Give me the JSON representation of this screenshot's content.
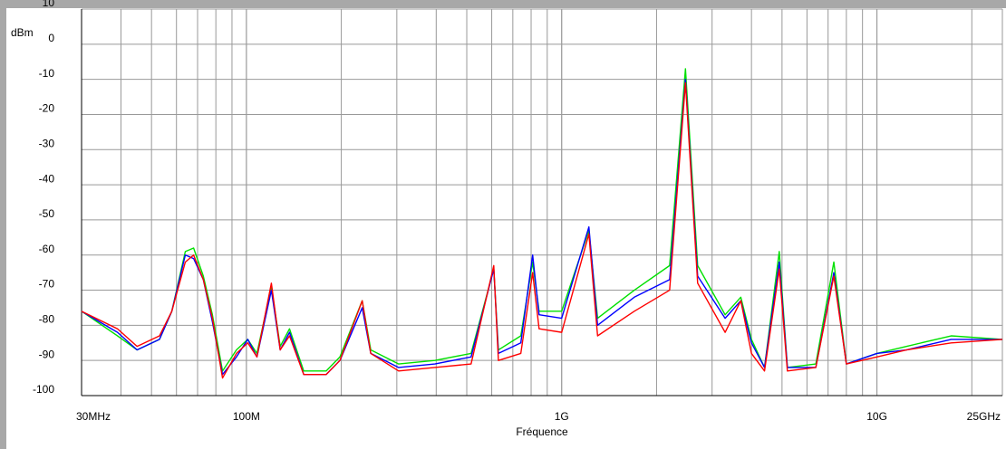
{
  "chart_data": {
    "type": "line",
    "y_label": "dBm",
    "x_label": "Fréquence",
    "log_x": true,
    "grid": true,
    "minor_grid": true,
    "xlim": [
      30000000,
      25000000000
    ],
    "xticks": [
      {
        "value": 30000000,
        "label": "30MHz"
      },
      {
        "value": 100000000,
        "label": "100M"
      },
      {
        "value": 1000000000,
        "label": "1G"
      },
      {
        "value": 10000000000,
        "label": "10G"
      },
      {
        "value": 25000000000,
        "label": "25GHz"
      }
    ],
    "ylim": [
      -100,
      10
    ],
    "yticks": [
      10,
      0,
      -10,
      -20,
      -30,
      -40,
      -50,
      -60,
      -70,
      -80,
      -90,
      -100
    ],
    "x": [
      30000000.0,
      39000000.0,
      45000000.0,
      53000000.0,
      58000000.0,
      64000000.0,
      68000000.0,
      73000000.0,
      78000000.0,
      84000000.0,
      93000000.0,
      101000000.0,
      108000000.0,
      120000000.0,
      128000000.0,
      137000000.0,
      152000000.0,
      179000000.0,
      198000000.0,
      233000000.0,
      248000000.0,
      304000000.0,
      396000000.0,
      516000000.0,
      609000000.0,
      630000000.0,
      742000000.0,
      809000000.0,
      848000000.0,
      1000000000.0,
      1220000000.0,
      1300000000.0,
      1700000000.0,
      2200000000.0,
      2470000000.0,
      2700000000.0,
      3300000000.0,
      3700000000.0,
      4000000000.0,
      4400000000.0,
      4900000000.0,
      5200000000.0,
      6400000000.0,
      7300000000.0,
      8000000000.0,
      10000000000.0,
      12400000000.0,
      17200000000.0,
      25000000000.0
    ],
    "series": [
      {
        "color": "#00e000",
        "values": [
          -76,
          -83,
          -87,
          -84,
          -76,
          -59,
          -58,
          -66,
          -77,
          -93,
          -87,
          -84,
          -88,
          -69,
          -86,
          -81,
          -93,
          -93,
          -89,
          -73,
          -87,
          -91,
          -90,
          -88,
          -64,
          -87,
          -83,
          -62,
          -76,
          -76,
          -53,
          -78,
          -70,
          -63,
          -7,
          -63,
          -77,
          -72,
          -84,
          -92,
          -59,
          -92,
          -91,
          -62,
          -91,
          -88,
          -86,
          -83,
          -84
        ]
      },
      {
        "color": "#0000ff",
        "values": [
          -76,
          -82,
          -87,
          -84,
          -76,
          -60,
          -61,
          -67,
          -79,
          -94,
          -89,
          -84,
          -89,
          -70,
          -87,
          -82,
          -94,
          -94,
          -90,
          -75,
          -88,
          -92,
          -91,
          -89,
          -64,
          -88,
          -85,
          -60,
          -77,
          -78,
          -52,
          -80,
          -72,
          -67,
          -10,
          -66,
          -78,
          -73,
          -85,
          -92,
          -62,
          -92,
          -92,
          -65,
          -91,
          -88,
          -87,
          -84,
          -84
        ]
      },
      {
        "color": "#ff0000",
        "values": [
          -76,
          -81,
          -86,
          -83,
          -76,
          -62,
          -60,
          -67,
          -78,
          -95,
          -88,
          -85,
          -89,
          -68,
          -87,
          -83,
          -94,
          -94,
          -90,
          -73,
          -88,
          -93,
          -92,
          -91,
          -63,
          -90,
          -88,
          -65,
          -81,
          -82,
          -54,
          -83,
          -76,
          -70,
          -11,
          -68,
          -82,
          -73,
          -88,
          -93,
          -64,
          -93,
          -92,
          -66,
          -91,
          -89,
          -87,
          -85,
          -84
        ]
      }
    ]
  }
}
